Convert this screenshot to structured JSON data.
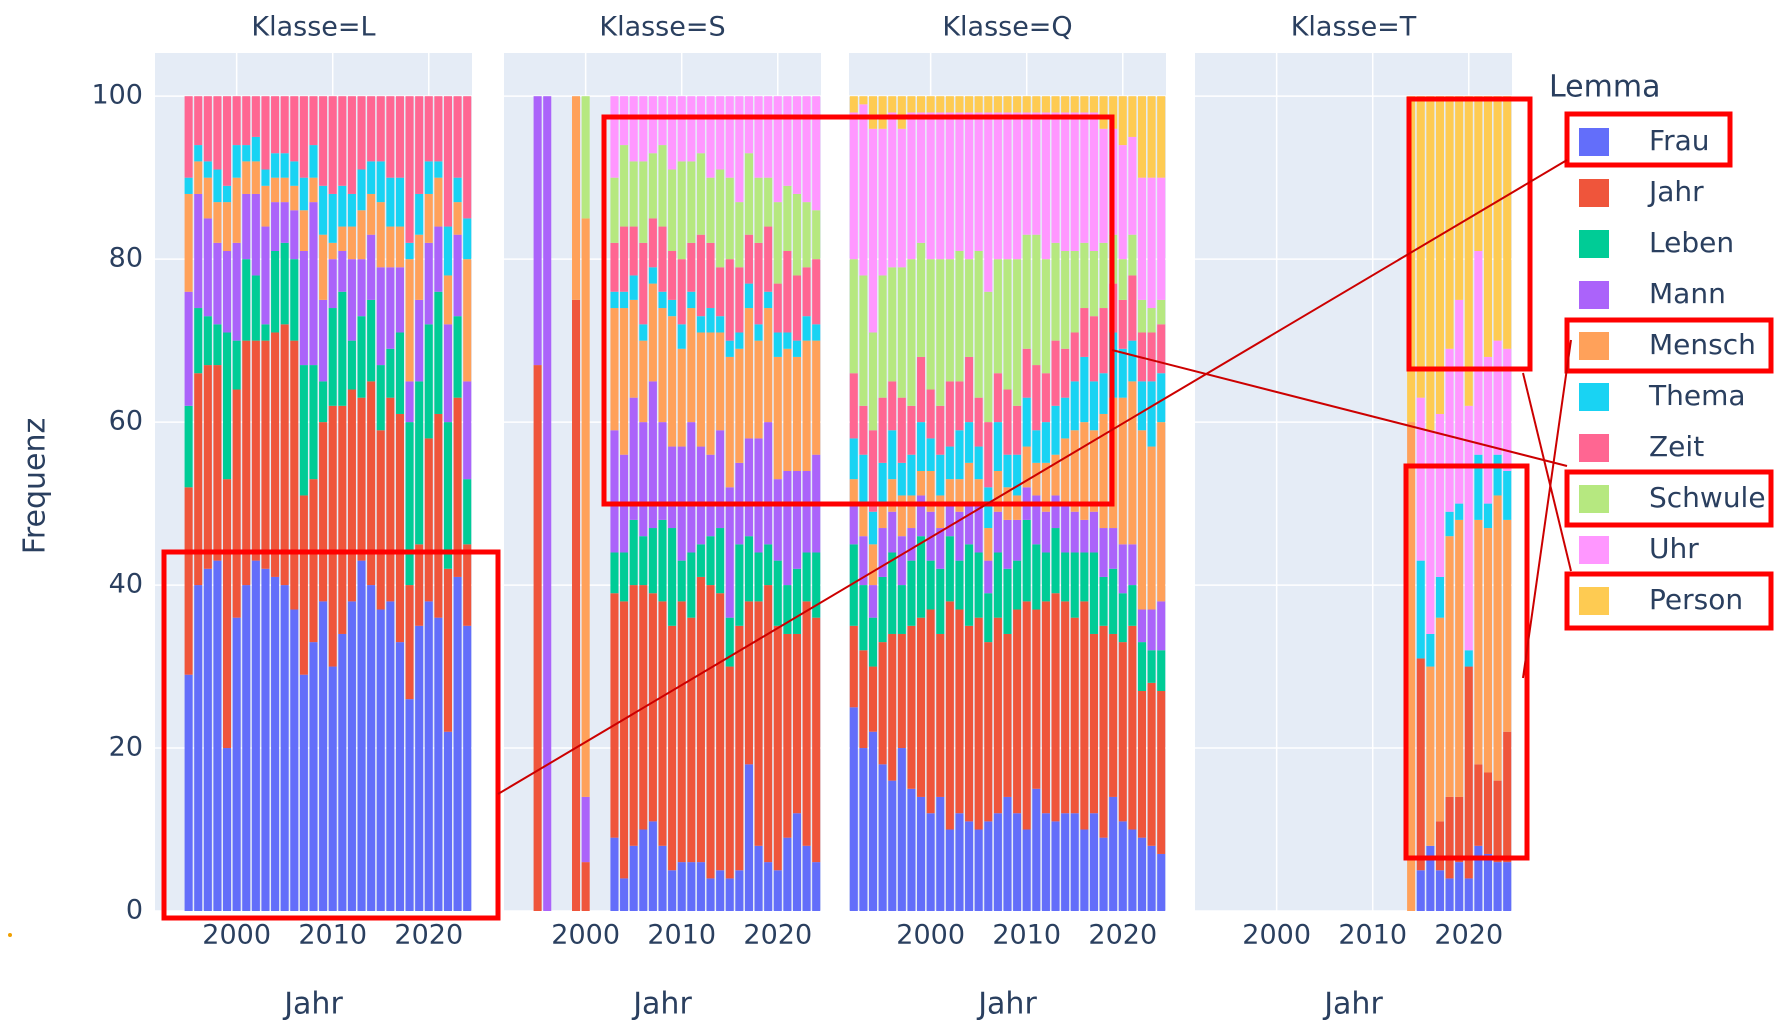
{
  "chart_data": {
    "type": "bar",
    "barmode": "stack",
    "ylabel": "Frequenz",
    "xlabel": "Jahr",
    "legend_title": "Lemma",
    "ylim": [
      0,
      105.3
    ],
    "yticks": [
      0,
      20,
      40,
      60,
      80,
      100
    ],
    "xlim": [
      1991.5,
      2024.5
    ],
    "xticks": [
      2000,
      2010,
      2020
    ],
    "grid": true,
    "series": [
      {
        "name": "Frau",
        "color": "#636efa"
      },
      {
        "name": "Jahr",
        "color": "#EF553B"
      },
      {
        "name": "Leben",
        "color": "#00cc96"
      },
      {
        "name": "Mann",
        "color": "#ab63fa"
      },
      {
        "name": "Mensch",
        "color": "#FFA15A"
      },
      {
        "name": "Thema",
        "color": "#19d3f3"
      },
      {
        "name": "Zeit",
        "color": "#FF6692"
      },
      {
        "name": "Schwule",
        "color": "#B6E880"
      },
      {
        "name": "Uhr",
        "color": "#FF97FF"
      },
      {
        "name": "Person",
        "color": "#FECB52"
      }
    ],
    "facets": [
      {
        "title": "Klasse=L",
        "x": [
          1995,
          1996,
          1997,
          1998,
          1999,
          2000,
          2001,
          2002,
          2003,
          2004,
          2005,
          2006,
          2007,
          2008,
          2009,
          2010,
          2011,
          2012,
          2013,
          2014,
          2015,
          2016,
          2017,
          2018,
          2019,
          2020,
          2021,
          2022,
          2023,
          2024
        ],
        "values": [
          [
            29,
            40,
            42,
            43,
            20,
            36,
            40,
            43,
            42,
            41,
            40,
            37,
            29,
            33,
            38,
            30,
            34,
            38,
            43,
            40,
            37,
            38,
            33,
            26,
            35,
            38,
            36,
            22,
            41,
            35
          ],
          [
            23,
            26,
            25,
            24,
            33,
            28,
            30,
            27,
            28,
            30,
            32,
            33,
            22,
            20,
            22,
            32,
            28,
            26,
            20,
            25,
            22,
            25,
            28,
            14,
            10,
            20,
            25,
            20,
            22,
            10
          ],
          [
            10,
            8,
            6,
            5,
            18,
            6,
            10,
            8,
            2,
            10,
            10,
            10,
            16,
            14,
            5,
            12,
            14,
            6,
            10,
            10,
            8,
            6,
            10,
            20,
            20,
            14,
            15,
            18,
            10,
            8
          ],
          [
            14,
            14,
            12,
            10,
            10,
            12,
            8,
            10,
            12,
            6,
            5,
            6,
            14,
            20,
            10,
            6,
            5,
            10,
            7,
            8,
            12,
            10,
            8,
            5,
            10,
            10,
            8,
            12,
            10,
            12
          ],
          [
            12,
            4,
            5,
            5,
            6,
            8,
            4,
            4,
            5,
            3,
            3,
            3,
            5,
            3,
            8,
            2,
            3,
            4,
            6,
            5,
            8,
            5,
            5,
            15,
            8,
            6,
            6,
            6,
            4,
            15
          ],
          [
            2,
            2,
            2,
            4,
            2,
            4,
            2,
            3,
            2,
            3,
            3,
            3,
            4,
            4,
            6,
            6,
            5,
            4,
            5,
            4,
            5,
            6,
            6,
            2,
            5,
            4,
            2,
            6,
            3,
            5
          ],
          [
            10,
            6,
            8,
            9,
            11,
            6,
            6,
            5,
            9,
            7,
            7,
            8,
            10,
            6,
            11,
            12,
            11,
            12,
            9,
            8,
            8,
            10,
            10,
            18,
            12,
            8,
            8,
            16,
            10,
            15
          ],
          [
            0,
            0,
            0,
            0,
            0,
            0,
            0,
            0,
            0,
            0,
            0,
            0,
            0,
            0,
            0,
            0,
            0,
            0,
            0,
            0,
            0,
            0,
            0,
            0,
            0,
            0,
            0,
            0,
            0,
            0
          ],
          [
            0,
            0,
            0,
            0,
            0,
            0,
            0,
            0,
            0,
            0,
            0,
            0,
            0,
            0,
            0,
            0,
            0,
            0,
            0,
            0,
            0,
            0,
            0,
            0,
            0,
            0,
            0,
            0,
            0,
            0
          ],
          [
            0,
            0,
            0,
            0,
            0,
            0,
            0,
            0,
            0,
            0,
            0,
            0,
            0,
            0,
            0,
            0,
            0,
            0,
            0,
            0,
            0,
            0,
            0,
            0,
            0,
            0,
            0,
            0,
            0,
            0
          ]
        ]
      },
      {
        "title": "Klasse=S",
        "x": [
          1995,
          1996,
          1999,
          2000,
          2003,
          2004,
          2005,
          2006,
          2007,
          2008,
          2009,
          2010,
          2011,
          2012,
          2013,
          2014,
          2015,
          2016,
          2017,
          2018,
          2019,
          2020,
          2021,
          2022,
          2023,
          2024
        ],
        "values": [
          [
            0,
            0,
            0,
            0,
            9,
            4,
            8,
            10,
            11,
            8,
            5,
            6,
            6,
            6,
            4,
            5,
            4,
            5,
            18,
            8,
            6,
            5,
            9,
            12,
            8,
            6
          ],
          [
            67,
            0,
            75,
            6,
            30,
            34,
            32,
            30,
            28,
            30,
            30,
            32,
            30,
            35,
            36,
            34,
            26,
            30,
            20,
            30,
            34,
            30,
            25,
            22,
            30,
            30
          ],
          [
            0,
            0,
            0,
            0,
            5,
            6,
            8,
            6,
            8,
            10,
            12,
            5,
            8,
            4,
            6,
            8,
            6,
            10,
            8,
            6,
            5,
            8,
            6,
            8,
            6,
            8
          ],
          [
            33,
            100,
            0,
            8,
            15,
            12,
            15,
            14,
            18,
            12,
            10,
            14,
            16,
            12,
            10,
            12,
            16,
            10,
            12,
            14,
            15,
            10,
            14,
            12,
            10,
            12
          ],
          [
            0,
            0,
            25,
            71,
            15,
            18,
            12,
            10,
            12,
            14,
            16,
            12,
            14,
            14,
            15,
            12,
            16,
            14,
            16,
            12,
            14,
            15,
            15,
            14,
            16,
            14
          ],
          [
            0,
            0,
            0,
            0,
            2,
            2,
            3,
            2,
            2,
            2,
            2,
            3,
            2,
            2,
            3,
            2,
            2,
            2,
            3,
            2,
            2,
            3,
            2,
            2,
            3,
            2
          ],
          [
            0,
            0,
            0,
            0,
            6,
            8,
            6,
            10,
            6,
            8,
            6,
            8,
            6,
            10,
            8,
            6,
            10,
            8,
            6,
            10,
            8,
            6,
            10,
            8,
            6,
            8
          ],
          [
            0,
            0,
            0,
            15,
            8,
            10,
            8,
            10,
            8,
            10,
            10,
            12,
            10,
            10,
            8,
            12,
            10,
            8,
            10,
            8,
            6,
            10,
            8,
            10,
            8,
            6
          ],
          [
            0,
            0,
            0,
            0,
            10,
            6,
            8,
            8,
            7,
            6,
            9,
            8,
            8,
            7,
            10,
            9,
            10,
            13,
            7,
            10,
            10,
            13,
            11,
            12,
            13,
            14
          ],
          [
            0,
            0,
            0,
            0,
            0,
            0,
            0,
            0,
            0,
            0,
            0,
            0,
            0,
            0,
            0,
            0,
            0,
            0,
            0,
            0,
            0,
            0,
            0,
            0,
            0,
            0
          ]
        ]
      },
      {
        "title": "Klasse=Q",
        "x": [
          1992,
          1993,
          1994,
          1995,
          1996,
          1997,
          1998,
          1999,
          2000,
          2001,
          2002,
          2003,
          2004,
          2005,
          2006,
          2007,
          2008,
          2009,
          2010,
          2011,
          2012,
          2013,
          2014,
          2015,
          2016,
          2017,
          2018,
          2019,
          2020,
          2021,
          2022,
          2023,
          2024
        ],
        "values": [
          [
            25,
            20,
            22,
            18,
            16,
            20,
            15,
            14,
            12,
            14,
            10,
            12,
            11,
            10,
            11,
            12,
            14,
            12,
            10,
            15,
            12,
            11,
            12,
            12,
            10,
            12,
            9,
            14,
            11,
            10,
            9,
            8,
            7
          ],
          [
            10,
            12,
            8,
            15,
            18,
            14,
            20,
            22,
            25,
            20,
            28,
            25,
            24,
            26,
            22,
            24,
            20,
            25,
            28,
            22,
            26,
            28,
            26,
            24,
            28,
            22,
            26,
            20,
            22,
            25,
            18,
            20,
            20
          ],
          [
            10,
            8,
            6,
            8,
            10,
            6,
            8,
            10,
            6,
            8,
            8,
            6,
            10,
            8,
            6,
            8,
            8,
            6,
            10,
            8,
            6,
            8,
            6,
            8,
            6,
            10,
            6,
            8,
            6,
            5,
            6,
            4,
            5
          ],
          [
            5,
            6,
            4,
            6,
            5,
            6,
            4,
            5,
            6,
            5,
            4,
            6,
            5,
            6,
            4,
            5,
            6,
            5,
            4,
            6,
            5,
            4,
            6,
            5,
            4,
            5,
            6,
            5,
            6,
            5,
            4,
            5,
            6
          ],
          [
            3,
            4,
            5,
            3,
            4,
            5,
            4,
            3,
            5,
            4,
            3,
            4,
            5,
            3,
            4,
            5,
            4,
            3,
            5,
            4,
            6,
            5,
            8,
            10,
            12,
            10,
            14,
            16,
            18,
            20,
            22,
            20,
            22
          ],
          [
            5,
            6,
            4,
            5,
            6,
            4,
            5,
            6,
            4,
            5,
            4,
            6,
            5,
            4,
            5,
            6,
            4,
            5,
            6,
            4,
            5,
            6,
            5,
            6,
            8,
            6,
            5,
            8,
            6,
            5,
            6,
            8,
            6
          ],
          [
            8,
            6,
            10,
            8,
            6,
            8,
            6,
            8,
            6,
            6,
            8,
            6,
            8,
            6,
            8,
            6,
            8,
            6,
            6,
            8,
            6,
            8,
            6,
            6,
            6,
            8,
            8,
            6,
            6,
            8,
            6,
            6,
            6
          ],
          [
            14,
            16,
            12,
            15,
            14,
            16,
            18,
            14,
            16,
            18,
            15,
            16,
            12,
            18,
            16,
            14,
            16,
            18,
            14,
            16,
            14,
            12,
            12,
            10,
            8,
            8,
            8,
            6,
            5,
            5,
            4,
            3,
            3
          ],
          [
            18,
            21,
            25,
            18,
            19,
            17,
            18,
            16,
            18,
            18,
            18,
            17,
            18,
            17,
            22,
            18,
            18,
            18,
            15,
            15,
            18,
            16,
            17,
            17,
            16,
            17,
            14,
            13,
            14,
            12,
            15,
            16,
            15
          ],
          [
            2,
            1,
            4,
            4,
            2,
            4,
            2,
            2,
            2,
            2,
            2,
            2,
            2,
            2,
            2,
            2,
            2,
            2,
            2,
            2,
            2,
            2,
            2,
            2,
            2,
            2,
            4,
            4,
            6,
            5,
            10,
            10,
            10
          ]
        ]
      },
      {
        "title": "Klasse=T",
        "x": [
          2014,
          2015,
          2016,
          2017,
          2018,
          2019,
          2020,
          2021,
          2022,
          2023,
          2024
        ],
        "values": [
          [
            0,
            5,
            8,
            5,
            4,
            6,
            4,
            8,
            7,
            6,
            6
          ],
          [
            0,
            26,
            0,
            6,
            10,
            8,
            26,
            10,
            10,
            10,
            16
          ],
          [
            0,
            0,
            0,
            0,
            0,
            0,
            0,
            0,
            0,
            0,
            0
          ],
          [
            0,
            0,
            0,
            0,
            0,
            0,
            0,
            0,
            0,
            0,
            0
          ],
          [
            60,
            0,
            22,
            25,
            32,
            34,
            0,
            30,
            30,
            35,
            26
          ],
          [
            0,
            12,
            4,
            5,
            3,
            2,
            2,
            8,
            3,
            5,
            6
          ],
          [
            0,
            0,
            0,
            0,
            0,
            0,
            0,
            0,
            0,
            0,
            0
          ],
          [
            0,
            0,
            0,
            0,
            0,
            0,
            0,
            0,
            0,
            0,
            0
          ],
          [
            0,
            20,
            25,
            20,
            20,
            25,
            30,
            25,
            18,
            14,
            15
          ],
          [
            40,
            37,
            41,
            39,
            31,
            25,
            38,
            19,
            32,
            30,
            31
          ]
        ]
      }
    ]
  }
}
